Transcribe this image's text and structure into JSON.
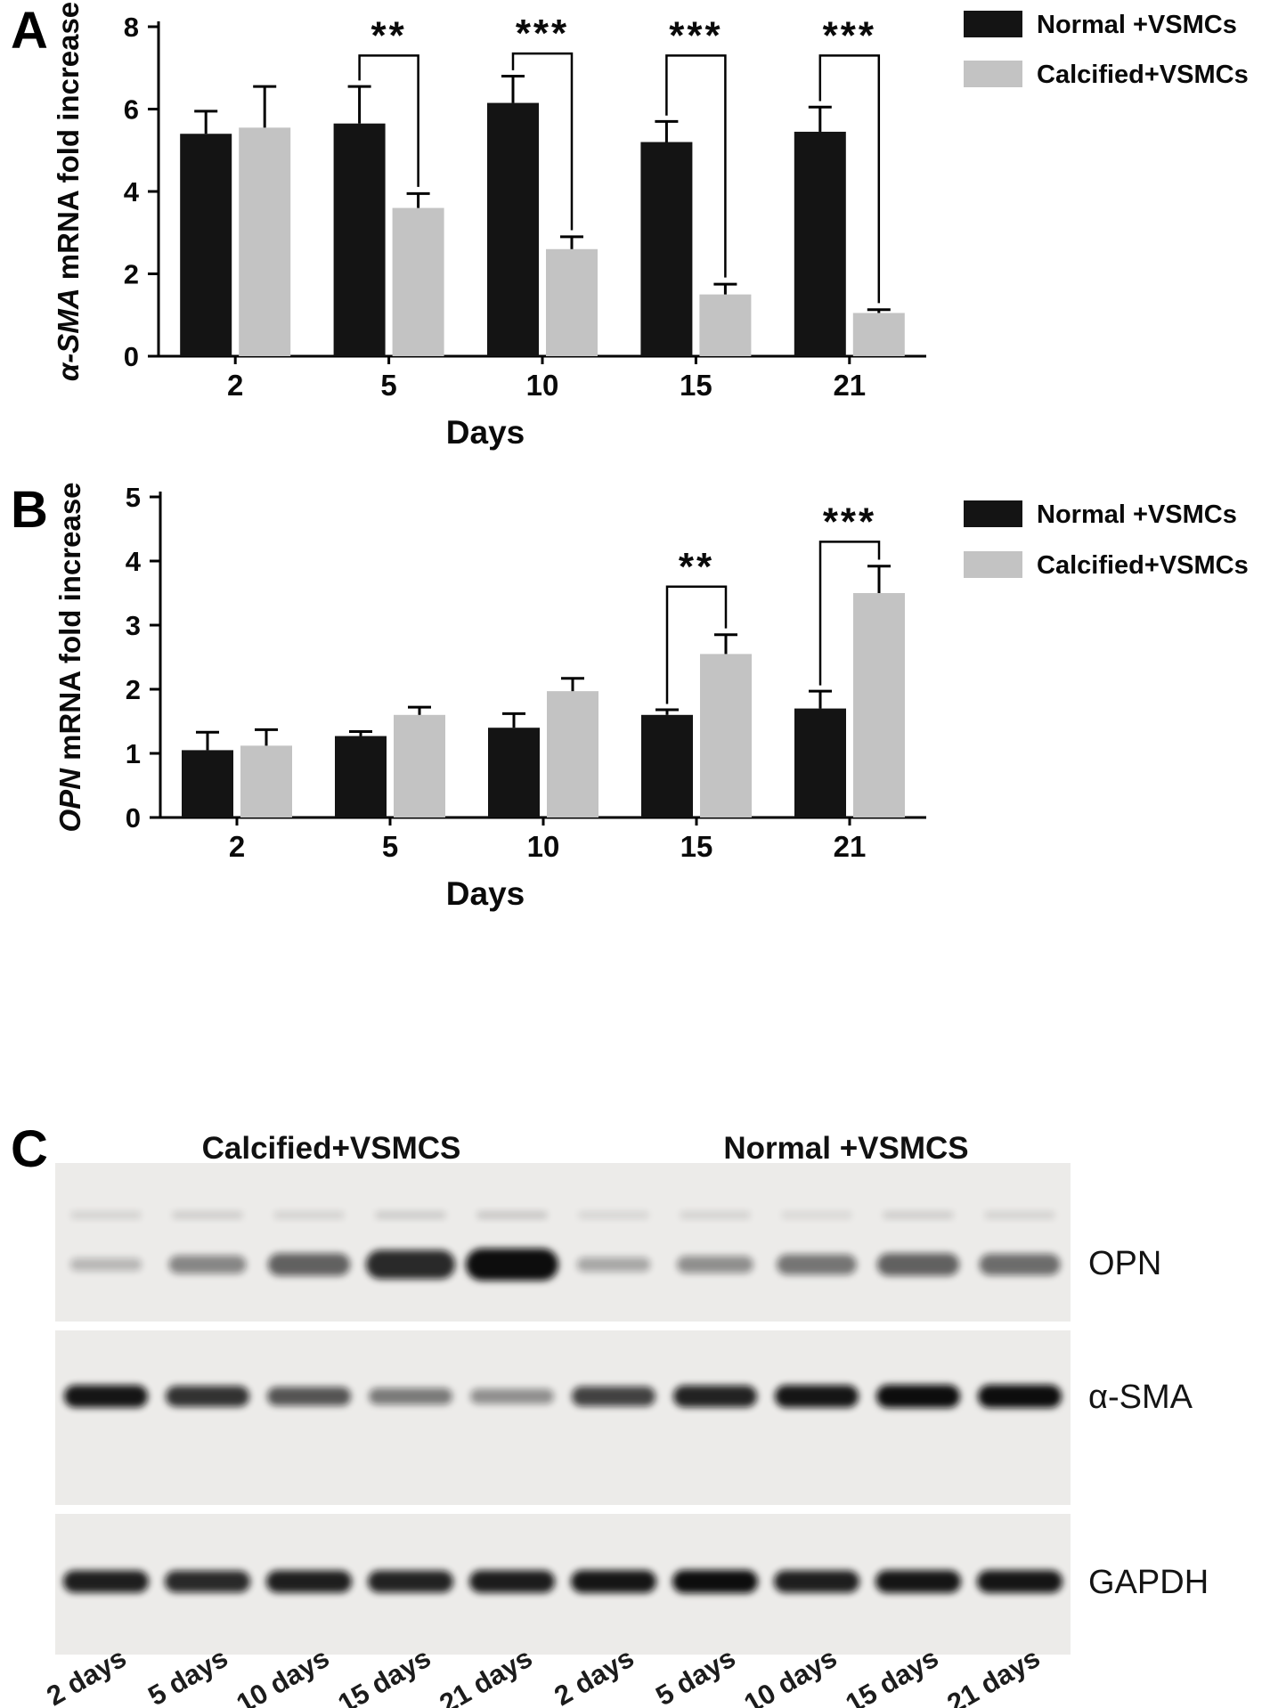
{
  "figure": {
    "background": "#ffffff",
    "panels": [
      {
        "letter": "A"
      },
      {
        "letter": "B"
      },
      {
        "letter": "C"
      }
    ]
  },
  "colors": {
    "normal_series": "#141414",
    "calcified_series": "#c3c3c3",
    "axis": "#000000",
    "blot_background": "#ecebe9",
    "band": "#0c0b0a"
  },
  "chart_data": [
    {
      "id": "alpha-sma-mrna",
      "type": "bar",
      "panel": "A",
      "title": "",
      "ylabel_italic": "α-SMA",
      "ylabel_rest": " mRNA fold increase",
      "xlabel": "Days",
      "categories": [
        "2",
        "5",
        "10",
        "15",
        "21"
      ],
      "ylim": [
        0,
        8
      ],
      "yticks": [
        0,
        2,
        4,
        6,
        8
      ],
      "grid": false,
      "legend_position": "top-right",
      "series": [
        {
          "name": "Normal +VSMCs",
          "color": "#141414",
          "values": [
            5.4,
            5.65,
            6.15,
            5.2,
            5.45
          ],
          "errors": [
            0.55,
            0.9,
            0.65,
            0.5,
            0.6
          ]
        },
        {
          "name": "Calcified+VSMCs",
          "color": "#c3c3c3",
          "values": [
            5.55,
            3.6,
            2.6,
            1.5,
            1.05
          ],
          "errors": [
            1.0,
            0.35,
            0.3,
            0.25,
            0.08
          ]
        }
      ],
      "significance": [
        {
          "category_index": 1,
          "label": "**",
          "bracket_y": 7.3
        },
        {
          "category_index": 2,
          "label": "***",
          "bracket_y": 7.35
        },
        {
          "category_index": 3,
          "label": "***",
          "bracket_y": 7.3
        },
        {
          "category_index": 4,
          "label": "***",
          "bracket_y": 7.3
        }
      ]
    },
    {
      "id": "opn-mrna",
      "type": "bar",
      "panel": "B",
      "title": "",
      "ylabel_italic": "OPN",
      "ylabel_rest": " mRNA fold increase",
      "xlabel": "Days",
      "categories": [
        "2",
        "5",
        "10",
        "15",
        "21"
      ],
      "ylim": [
        0,
        5
      ],
      "yticks": [
        0,
        1,
        2,
        3,
        4,
        5
      ],
      "grid": false,
      "legend_position": "top-right",
      "series": [
        {
          "name": "Normal +VSMCs",
          "color": "#141414",
          "values": [
            1.05,
            1.27,
            1.4,
            1.6,
            1.7
          ],
          "errors": [
            0.28,
            0.07,
            0.22,
            0.08,
            0.27
          ]
        },
        {
          "name": "Calcified+VSMCs",
          "color": "#c3c3c3",
          "values": [
            1.12,
            1.6,
            1.97,
            2.55,
            3.5
          ],
          "errors": [
            0.25,
            0.12,
            0.2,
            0.3,
            0.42
          ]
        }
      ],
      "significance": [
        {
          "category_index": 3,
          "label": "**",
          "bracket_y": 3.6
        },
        {
          "category_index": 4,
          "label": "***",
          "bracket_y": 4.3
        }
      ]
    }
  ],
  "blot": {
    "panel": "C",
    "group_headers": [
      "Calcified+VSMCS",
      "Normal +VSMCS"
    ],
    "lane_labels": [
      "2 days",
      "5 days",
      "10 days",
      "15 days",
      "21 days",
      "2 days",
      "5 days",
      "10 days",
      "15 days",
      "21 days"
    ],
    "rows": [
      {
        "label": "OPN",
        "band_intensities": [
          0.1,
          0.35,
          0.55,
          0.85,
          1.0,
          0.18,
          0.3,
          0.45,
          0.55,
          0.5
        ],
        "ghost_intensities": [
          0.1,
          0.12,
          0.1,
          0.13,
          0.15,
          0.09,
          0.1,
          0.08,
          0.12,
          0.1
        ]
      },
      {
        "label": "α-SMA",
        "band_intensities": [
          0.95,
          0.8,
          0.62,
          0.42,
          0.3,
          0.72,
          0.88,
          0.95,
          1.0,
          1.0
        ]
      },
      {
        "label": "GAPDH",
        "band_intensities": [
          0.9,
          0.85,
          0.9,
          0.88,
          0.92,
          0.95,
          1.0,
          0.9,
          0.95,
          0.95
        ]
      }
    ]
  }
}
